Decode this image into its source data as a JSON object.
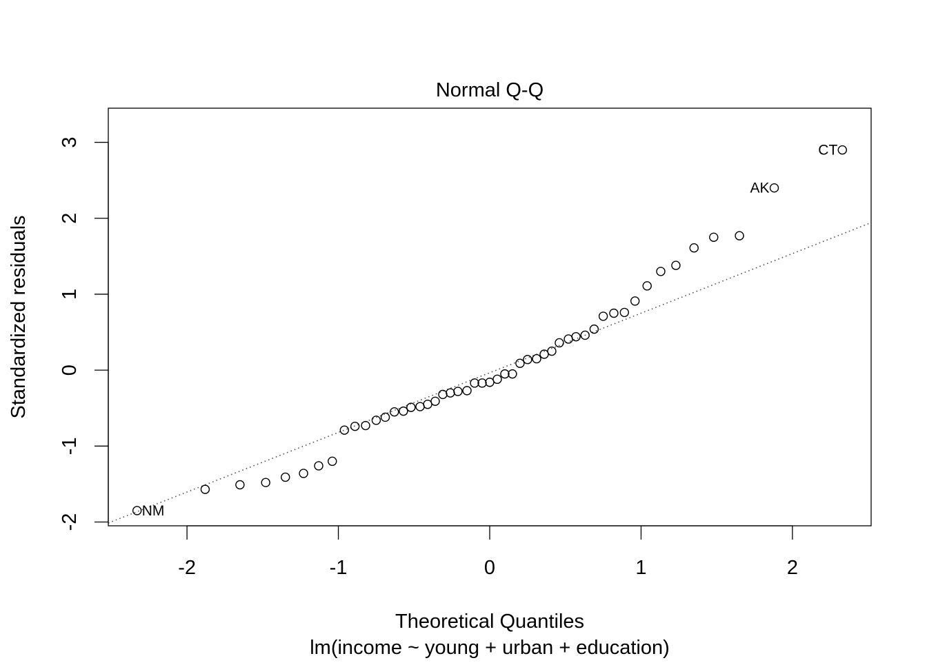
{
  "chart_data": {
    "type": "scatter",
    "title": "Normal Q-Q",
    "xlabel": "Theoretical Quantiles",
    "xlabel_sub": "lm(income ~ young + urban + education)",
    "ylabel": "Standardized residuals",
    "xlim": [
      -2.52,
      2.52
    ],
    "ylim": [
      -2.05,
      3.45
    ],
    "x_ticks": [
      -2,
      -1,
      0,
      1,
      2
    ],
    "x_tick_labels": [
      "-2",
      "-1",
      "0",
      "1",
      "2"
    ],
    "y_ticks": [
      -2,
      -1,
      0,
      1,
      2,
      3
    ],
    "y_tick_labels": [
      "-2",
      "-1",
      "0",
      "1",
      "2",
      "3"
    ],
    "grid": false,
    "reference_line": {
      "style": "dotted",
      "color": "#555555",
      "slope": 0.785,
      "intercept": -0.035
    },
    "points": [
      {
        "x": -2.33,
        "y": -1.85,
        "label": "NM",
        "label_side": "right"
      },
      {
        "x": -1.88,
        "y": -1.57
      },
      {
        "x": -1.65,
        "y": -1.51
      },
      {
        "x": -1.48,
        "y": -1.48
      },
      {
        "x": -1.35,
        "y": -1.41
      },
      {
        "x": -1.23,
        "y": -1.36
      },
      {
        "x": -1.13,
        "y": -1.26
      },
      {
        "x": -1.04,
        "y": -1.2
      },
      {
        "x": -0.96,
        "y": -0.79
      },
      {
        "x": -0.89,
        "y": -0.74
      },
      {
        "x": -0.82,
        "y": -0.73
      },
      {
        "x": -0.75,
        "y": -0.66
      },
      {
        "x": -0.69,
        "y": -0.62
      },
      {
        "x": -0.63,
        "y": -0.55
      },
      {
        "x": -0.57,
        "y": -0.54
      },
      {
        "x": -0.52,
        "y": -0.49
      },
      {
        "x": -0.46,
        "y": -0.48
      },
      {
        "x": -0.41,
        "y": -0.45
      },
      {
        "x": -0.36,
        "y": -0.41
      },
      {
        "x": -0.31,
        "y": -0.32
      },
      {
        "x": -0.26,
        "y": -0.3
      },
      {
        "x": -0.21,
        "y": -0.28
      },
      {
        "x": -0.15,
        "y": -0.27
      },
      {
        "x": -0.1,
        "y": -0.17
      },
      {
        "x": -0.05,
        "y": -0.17
      },
      {
        "x": 0.0,
        "y": -0.16
      },
      {
        "x": 0.05,
        "y": -0.12
      },
      {
        "x": 0.1,
        "y": -0.05
      },
      {
        "x": 0.15,
        "y": -0.05
      },
      {
        "x": 0.2,
        "y": 0.09
      },
      {
        "x": 0.25,
        "y": 0.14
      },
      {
        "x": 0.31,
        "y": 0.15
      },
      {
        "x": 0.36,
        "y": 0.21
      },
      {
        "x": 0.41,
        "y": 0.25
      },
      {
        "x": 0.46,
        "y": 0.36
      },
      {
        "x": 0.52,
        "y": 0.41
      },
      {
        "x": 0.57,
        "y": 0.44
      },
      {
        "x": 0.63,
        "y": 0.46
      },
      {
        "x": 0.69,
        "y": 0.54
      },
      {
        "x": 0.75,
        "y": 0.71
      },
      {
        "x": 0.82,
        "y": 0.75
      },
      {
        "x": 0.89,
        "y": 0.76
      },
      {
        "x": 0.96,
        "y": 0.91
      },
      {
        "x": 1.04,
        "y": 1.11
      },
      {
        "x": 1.13,
        "y": 1.3
      },
      {
        "x": 1.23,
        "y": 1.38
      },
      {
        "x": 1.35,
        "y": 1.61
      },
      {
        "x": 1.48,
        "y": 1.75
      },
      {
        "x": 1.65,
        "y": 1.77
      },
      {
        "x": 1.88,
        "y": 2.4,
        "label": "AK",
        "label_side": "left"
      },
      {
        "x": 2.33,
        "y": 2.9,
        "label": "CT",
        "label_side": "left"
      }
    ]
  }
}
